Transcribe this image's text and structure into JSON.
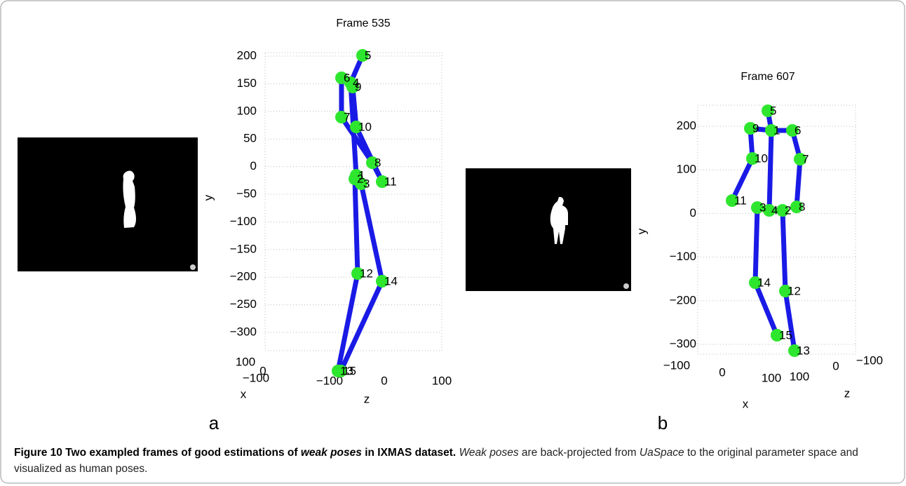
{
  "figure": {
    "panels": [
      {
        "letter": "a",
        "title": "Frame 535",
        "yticks": [
          "200",
          "150",
          "100",
          "50",
          "0",
          "−50",
          "−100",
          "−150",
          "−200",
          "−250",
          "−300"
        ],
        "xticks": [
          "100",
          "0",
          "−100"
        ],
        "zticks": [
          "−100",
          "0",
          "100"
        ],
        "y_label": "y",
        "x_label": "x",
        "z_label": "z",
        "joints": [
          "5",
          "6",
          "4",
          "9",
          "7",
          "10",
          "8",
          "2",
          "3",
          "11",
          "12",
          "14",
          "13",
          "15",
          "1"
        ]
      },
      {
        "letter": "b",
        "title": "Frame 607",
        "yticks": [
          "200",
          "100",
          "0",
          "−100",
          "−200",
          "−300"
        ],
        "xticks": [
          "−100",
          "0",
          "100"
        ],
        "zticks": [
          "100",
          "0",
          "−100"
        ],
        "y_label": "y",
        "x_label": "x",
        "z_label": "z",
        "joints": [
          "5",
          "9",
          "1",
          "6",
          "10",
          "7",
          "11",
          "3",
          "4",
          "2",
          "8",
          "14",
          "12",
          "15",
          "13"
        ]
      }
    ],
    "caption": {
      "label": "Figure 10",
      "title_start": "Two exampled frames of good estimations of",
      "title_italic": "weak poses",
      "title_end": "in IXMAS dataset.",
      "body_italic_1": "Weak poses",
      "body_1": "are back-projected from",
      "body_italic_2": "UaSpace",
      "body_2": "to the original parameter space and visualized as human poses."
    }
  }
}
